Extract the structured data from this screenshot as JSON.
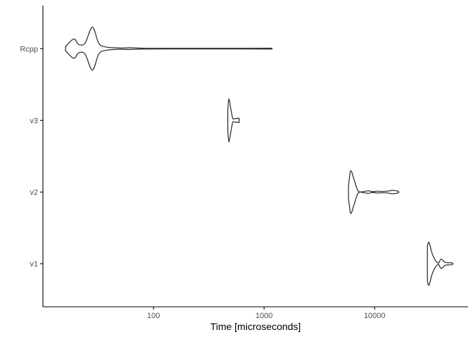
{
  "chart_data": {
    "type": "violin",
    "title": "",
    "xlabel": "Time [microseconds]",
    "ylabel": "",
    "x_scale": "log10",
    "xlim": [
      10,
      70000
    ],
    "x_ticks": [
      100,
      1000,
      10000
    ],
    "x_tick_labels": [
      "100",
      "1000",
      "10000"
    ],
    "grid": false,
    "legend": "none",
    "categories": [
      "v1",
      "v2",
      "v3",
      "Rcpp"
    ],
    "series": [
      {
        "category": "Rcpp",
        "density": [
          [
            16,
            0.1
          ],
          [
            19,
            0.45
          ],
          [
            21,
            0.2
          ],
          [
            24,
            0.25
          ],
          [
            28,
            1.0
          ],
          [
            32,
            0.25
          ],
          [
            37,
            0.08
          ],
          [
            50,
            0.03
          ],
          [
            60,
            0.04
          ],
          [
            80,
            0.02
          ],
          [
            120,
            0.015
          ],
          [
            250,
            0.015
          ],
          [
            600,
            0.015
          ],
          [
            1180,
            0.02
          ]
        ]
      },
      {
        "category": "v3",
        "density": [
          [
            470,
            0.45
          ],
          [
            480,
            1.0
          ],
          [
            500,
            0.55
          ],
          [
            520,
            0.1
          ],
          [
            540,
            0.08
          ],
          [
            570,
            0.09
          ],
          [
            595,
            0.1
          ]
        ]
      },
      {
        "category": "v2",
        "density": [
          [
            5800,
            0.25
          ],
          [
            5900,
            0.6
          ],
          [
            6100,
            1.0
          ],
          [
            6500,
            0.6
          ],
          [
            7100,
            0.05
          ],
          [
            8000,
            0.03
          ],
          [
            8800,
            0.06
          ],
          [
            9500,
            0.02
          ],
          [
            10500,
            0.04
          ],
          [
            12000,
            0.03
          ],
          [
            13500,
            0.05
          ],
          [
            14500,
            0.08
          ],
          [
            16000,
            0.05
          ],
          [
            16500,
            0.03
          ]
        ]
      },
      {
        "category": "v1",
        "density": [
          [
            30000,
            0.8
          ],
          [
            31000,
            1.0
          ],
          [
            33000,
            0.5
          ],
          [
            35000,
            0.2
          ],
          [
            37000,
            0.05
          ],
          [
            38000,
            0.04
          ],
          [
            40000,
            0.22
          ],
          [
            43000,
            0.08
          ],
          [
            46000,
            0.05
          ],
          [
            49000,
            0.05
          ],
          [
            51000,
            0.02
          ]
        ]
      }
    ]
  }
}
